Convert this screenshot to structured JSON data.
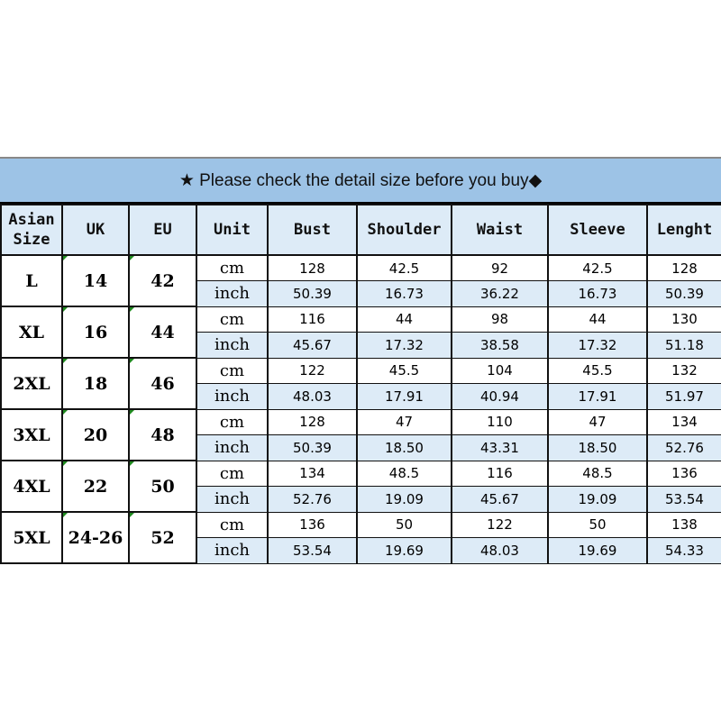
{
  "title": "★ Please check the detail size before you buy◆",
  "headers": [
    "Asian Size",
    "UK",
    "EU",
    "Unit",
    "Bust",
    "Shoulder",
    "Waist",
    "Sleeve",
    "Lenght"
  ],
  "colors": {
    "title_bg": "#9dc3e6",
    "header_bg": "#ddebf7",
    "inch_row_bg": "#ddebf7"
  },
  "rows": [
    {
      "asian": "L",
      "uk": "14",
      "eu": "42",
      "cm": {
        "unit": "cm",
        "values": [
          "128",
          "42.5",
          "92",
          "42.5",
          "128"
        ]
      },
      "inch": {
        "unit": "inch",
        "values": [
          "50.39",
          "16.73",
          "36.22",
          "16.73",
          "50.39"
        ]
      }
    },
    {
      "asian": "XL",
      "uk": "16",
      "eu": "44",
      "cm": {
        "unit": "cm",
        "values": [
          "116",
          "44",
          "98",
          "44",
          "130"
        ]
      },
      "inch": {
        "unit": "inch",
        "values": [
          "45.67",
          "17.32",
          "38.58",
          "17.32",
          "51.18"
        ]
      }
    },
    {
      "asian": "2XL",
      "uk": "18",
      "eu": "46",
      "cm": {
        "unit": "cm",
        "values": [
          "122",
          "45.5",
          "104",
          "45.5",
          "132"
        ]
      },
      "inch": {
        "unit": "inch",
        "values": [
          "48.03",
          "17.91",
          "40.94",
          "17.91",
          "51.97"
        ]
      }
    },
    {
      "asian": "3XL",
      "uk": "20",
      "eu": "48",
      "cm": {
        "unit": "cm",
        "values": [
          "128",
          "47",
          "110",
          "47",
          "134"
        ]
      },
      "inch": {
        "unit": "inch",
        "values": [
          "50.39",
          "18.50",
          "43.31",
          "18.50",
          "52.76"
        ]
      }
    },
    {
      "asian": "4XL",
      "uk": "22",
      "eu": "50",
      "cm": {
        "unit": "cm",
        "values": [
          "134",
          "48.5",
          "116",
          "48.5",
          "136"
        ]
      },
      "inch": {
        "unit": "inch",
        "values": [
          "52.76",
          "19.09",
          "45.67",
          "19.09",
          "53.54"
        ]
      }
    },
    {
      "asian": "5XL",
      "uk": "24-26",
      "eu": "52",
      "cm": {
        "unit": "cm",
        "values": [
          "136",
          "50",
          "122",
          "50",
          "138"
        ]
      },
      "inch": {
        "unit": "inch",
        "values": [
          "53.54",
          "19.69",
          "48.03",
          "19.69",
          "54.33"
        ]
      }
    }
  ]
}
